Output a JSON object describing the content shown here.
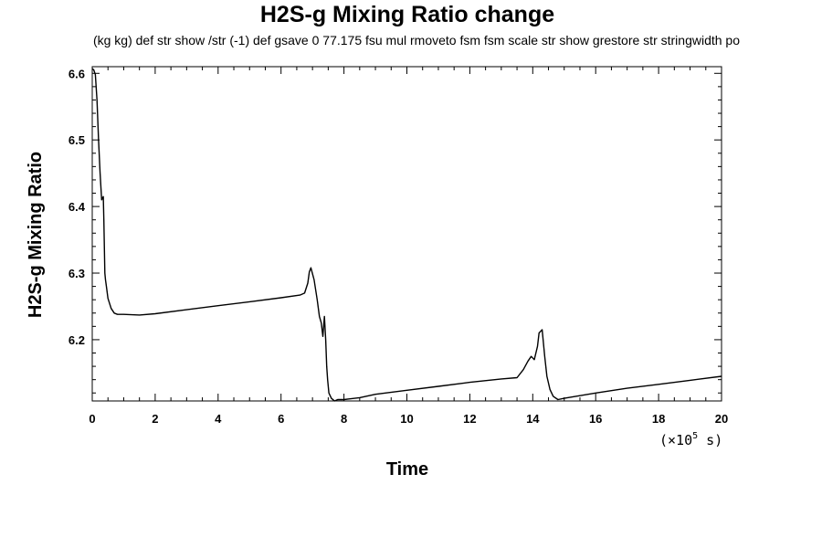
{
  "chart_data": {
    "type": "line",
    "title": "H2S-g Mixing Ratio change",
    "subtitle": "(kg kg) def str show /str (-1) def gsave 0 77.175 fsu mul rmoveto fsm fsm scale str show grestore str stringwidth po",
    "xlabel": "Time",
    "ylabel": "H2S-g Mixing Ratio",
    "x_unit_prefix": "(×10",
    "x_unit_exponent": "5",
    "x_unit_suffix": " s)",
    "xlim": [
      0,
      20
    ],
    "ylim": [
      6.108,
      6.61
    ],
    "xticks": [
      0,
      2,
      4,
      6,
      8,
      10,
      12,
      14,
      16,
      18,
      20
    ],
    "xtick_labels": [
      "0",
      "2",
      "4",
      "6",
      "8",
      "10",
      "12",
      "14",
      "16",
      "18",
      "20"
    ],
    "yticks": [
      6.2,
      6.3,
      6.4,
      6.5,
      6.6
    ],
    "ytick_labels": [
      "6.2",
      "6.3",
      "6.4",
      "6.5",
      "6.6"
    ],
    "grid": false,
    "line_color": "#000000",
    "series": [
      {
        "x": [
          0,
          0.05,
          0.1,
          0.15,
          0.2,
          0.25,
          0.3,
          0.35,
          0.37,
          0.4,
          0.42,
          0.45,
          0.5,
          0.6,
          0.7,
          0.8,
          1.0,
          1.5,
          2.0,
          3.0,
          4.0,
          5.0,
          6.0,
          6.6,
          6.75,
          6.85,
          6.9,
          6.95,
          7.05,
          7.15,
          7.22,
          7.28,
          7.33,
          7.38,
          7.42,
          7.45,
          7.48,
          7.52,
          7.6,
          7.7,
          7.8,
          8.0,
          8.5,
          9.0,
          10.0,
          11.0,
          12.0,
          13.0,
          13.5,
          13.7,
          13.85,
          13.95,
          14.05,
          14.15,
          14.2,
          14.3,
          14.38,
          14.45,
          14.55,
          14.65,
          14.8,
          15.0,
          15.5,
          16.0,
          17.0,
          18.0,
          19.0,
          20.0
        ],
        "y": [
          6.607,
          6.605,
          6.598,
          6.56,
          6.5,
          6.45,
          6.41,
          6.415,
          6.38,
          6.3,
          6.29,
          6.28,
          6.262,
          6.247,
          6.24,
          6.238,
          6.238,
          6.237,
          6.239,
          6.245,
          6.251,
          6.257,
          6.263,
          6.267,
          6.27,
          6.285,
          6.302,
          6.308,
          6.29,
          6.26,
          6.235,
          6.225,
          6.205,
          6.235,
          6.2,
          6.16,
          6.14,
          6.12,
          6.112,
          6.108,
          6.11,
          6.11,
          6.113,
          6.118,
          6.124,
          6.13,
          6.136,
          6.141,
          6.143,
          6.155,
          6.168,
          6.175,
          6.17,
          6.19,
          6.21,
          6.215,
          6.175,
          6.145,
          6.125,
          6.115,
          6.11,
          6.112,
          6.116,
          6.12,
          6.127,
          6.133,
          6.139,
          6.145
        ]
      }
    ]
  }
}
